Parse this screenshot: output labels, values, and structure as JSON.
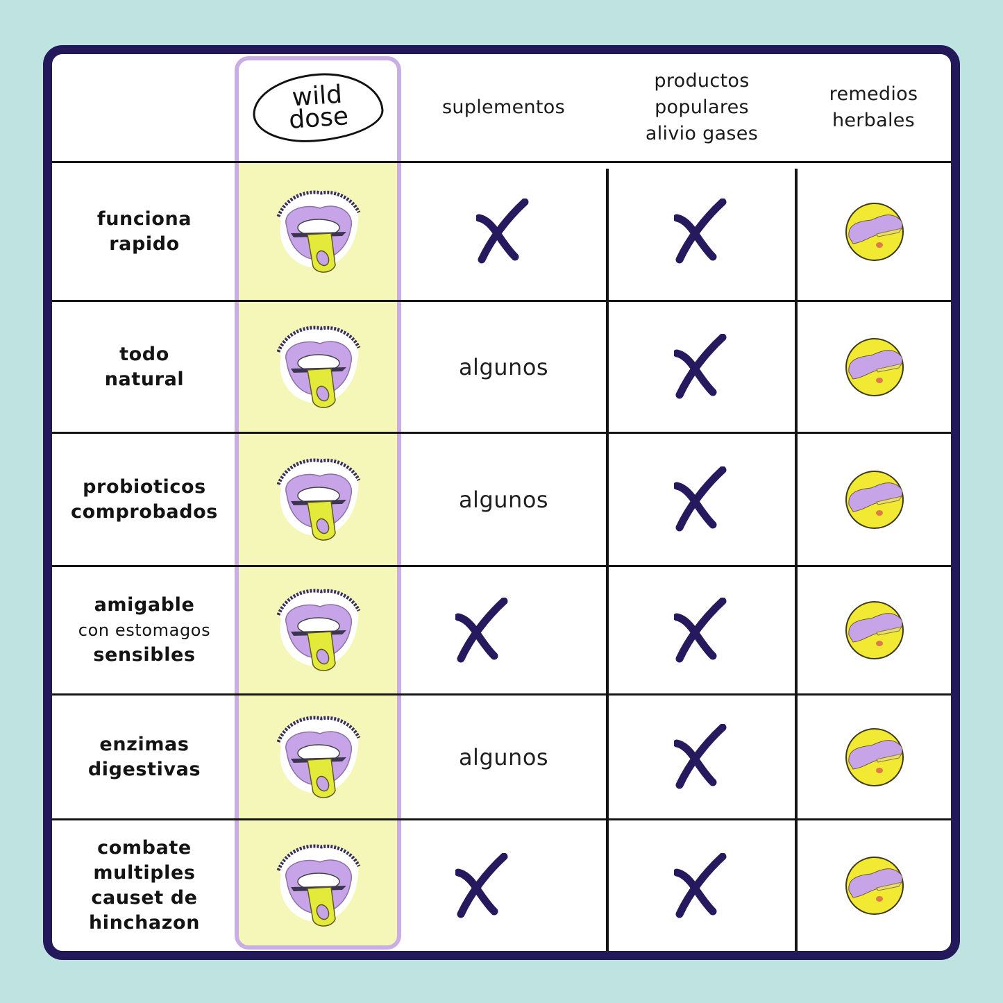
{
  "colors": {
    "background": "#bfe3e0",
    "frame": "#23195a",
    "highlight_border": "#c9aee6",
    "highlight_fill": "#f5f7b8",
    "cross": "#27195e",
    "icon_yellow": "#f2ea32",
    "icon_lavender": "#c7a3e8"
  },
  "header": {
    "brand_logo": {
      "line1": "wild",
      "line2": "dose"
    },
    "columns": [
      {
        "lines": [
          "suplementos"
        ]
      },
      {
        "lines": [
          "productos",
          "populares",
          "alivio gases"
        ]
      },
      {
        "lines": [
          "remedios",
          "herbales"
        ]
      }
    ]
  },
  "rows": [
    {
      "label": [
        "funciona",
        "rapido"
      ],
      "wild_dose": "pacifier-icon",
      "suplementos": "cross-icon",
      "productos": "cross-icon",
      "remedios": "herbal-pill-icon"
    },
    {
      "label": [
        "todo",
        "natural"
      ],
      "wild_dose": "pacifier-icon",
      "suplementos": "algunos",
      "productos": "cross-icon",
      "remedios": "herbal-pill-icon"
    },
    {
      "label": [
        "probioticos",
        "comprobados"
      ],
      "wild_dose": "pacifier-icon",
      "suplementos": "algunos",
      "productos": "cross-icon",
      "remedios": "herbal-pill-icon"
    },
    {
      "label": [
        "amigable",
        "con estomagos",
        "sensibles"
      ],
      "wild_dose": "pacifier-icon",
      "suplementos": "cross-icon",
      "productos": "cross-icon",
      "remedios": "herbal-pill-icon"
    },
    {
      "label": [
        "enzimas",
        "digestivas"
      ],
      "wild_dose": "pacifier-icon",
      "suplementos": "algunos",
      "productos": "cross-icon",
      "remedios": "herbal-pill-icon"
    },
    {
      "label": [
        "combate",
        "multiples",
        "causet de",
        "hinchazon"
      ],
      "wild_dose": "pacifier-icon",
      "suplementos": "cross-icon",
      "productos": "cross-icon",
      "remedios": "herbal-pill-icon"
    }
  ]
}
